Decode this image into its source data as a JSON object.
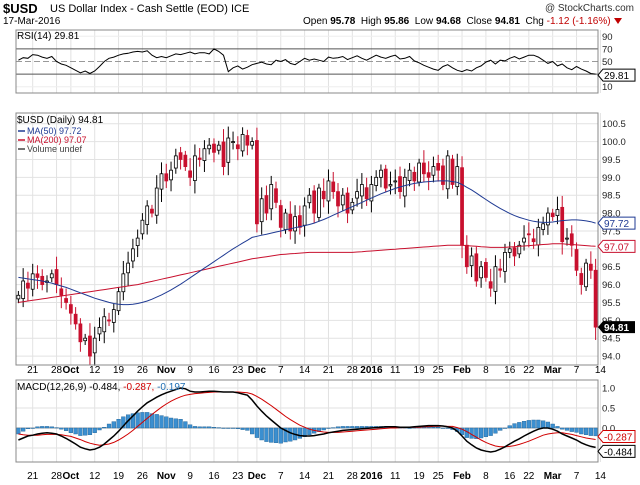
{
  "header": {
    "symbol": "$USD",
    "name": "US Dollar Index - Cash Settle (EOD) ICE",
    "watermark": "@ StockCharts.com",
    "date": "17-Mar-2016",
    "open_label": "Open",
    "open": "95.78",
    "high_label": "High",
    "high": "95.86",
    "low_label": "Low",
    "low": "94.68",
    "close_label": "Close",
    "close": "94.81",
    "chg_label": "Chg",
    "chg": "-1.12 (-1.16%)"
  },
  "x_axis": {
    "labels": [
      {
        "t": "21",
        "i": 3
      },
      {
        "t": "28",
        "i": 8
      },
      {
        "t": "Oct",
        "i": 11,
        "bold": true
      },
      {
        "t": "12",
        "i": 16
      },
      {
        "t": "19",
        "i": 21
      },
      {
        "t": "26",
        "i": 26
      },
      {
        "t": "Nov",
        "i": 31,
        "bold": true
      },
      {
        "t": "9",
        "i": 36
      },
      {
        "t": "16",
        "i": 41
      },
      {
        "t": "23",
        "i": 46
      },
      {
        "t": "Dec",
        "i": 50,
        "bold": true
      },
      {
        "t": "7",
        "i": 55
      },
      {
        "t": "14",
        "i": 60
      },
      {
        "t": "21",
        "i": 65
      },
      {
        "t": "28",
        "i": 70
      },
      {
        "t": "2016",
        "i": 74,
        "bold": true
      },
      {
        "t": "11",
        "i": 79
      },
      {
        "t": "19",
        "i": 84
      },
      {
        "t": "25",
        "i": 88
      },
      {
        "t": "Feb",
        "i": 93,
        "bold": true
      },
      {
        "t": "8",
        "i": 98
      },
      {
        "t": "16",
        "i": 103
      },
      {
        "t": "22",
        "i": 107
      },
      {
        "t": "Mar",
        "i": 112,
        "bold": true
      },
      {
        "t": "7",
        "i": 117
      },
      {
        "t": "14",
        "i": 122
      }
    ]
  },
  "colors": {
    "up": "#000000",
    "down": "#c8102e",
    "ma50": "#1f3a93",
    "ma200": "#c8102e",
    "macd": "#000000",
    "signal": "#d00000",
    "hist": "#3b8fd0",
    "rsi": "#000000"
  },
  "chart_data": [
    {
      "type": "line",
      "title": "RSI(14) 29.81",
      "y_ticks": [
        90,
        70,
        50,
        30,
        10
      ],
      "ylim": [
        0,
        100
      ],
      "overbought": 70,
      "oversold": 30,
      "last_label": "29.81",
      "series": [
        {
          "name": "RSI(14)",
          "values": [
            52,
            56,
            55,
            61,
            60,
            57,
            55,
            58,
            50,
            46,
            44,
            40,
            36,
            32,
            35,
            31,
            35,
            42,
            50,
            55,
            57,
            60,
            62,
            63,
            65,
            66,
            65,
            67,
            60,
            56,
            58,
            56,
            59,
            62,
            61,
            63,
            65,
            62,
            64,
            64,
            62,
            70,
            66,
            60,
            34,
            40,
            43,
            38,
            41,
            45,
            47,
            49,
            46,
            45,
            52,
            50,
            53,
            47,
            45,
            50,
            55,
            52,
            54,
            52,
            50,
            57,
            55,
            56,
            58,
            53,
            56,
            59,
            55,
            52,
            56,
            60,
            57,
            55,
            58,
            60,
            54,
            55,
            58,
            51,
            48,
            44,
            41,
            38,
            36,
            42,
            45,
            40,
            36,
            34,
            37,
            35,
            40,
            43,
            49,
            52,
            46,
            52,
            51,
            55,
            58,
            54,
            57,
            60,
            60,
            57,
            52,
            47,
            50,
            43,
            46,
            40,
            37,
            42,
            38,
            35,
            31,
            30
          ]
        }
      ]
    },
    {
      "type": "candlestick",
      "title": "$USD (Daily) 94.81",
      "legend": [
        {
          "label": "MA(50) 97.72",
          "color": "#1f3a93"
        },
        {
          "label": "MA(200) 97.07",
          "color": "#c8102e"
        },
        {
          "label": "Volume undef",
          "color": "#444444"
        }
      ],
      "y_ticks": [
        94.0,
        94.5,
        95.0,
        95.5,
        96.0,
        96.5,
        97.0,
        97.5,
        98.0,
        98.5,
        99.0,
        99.5,
        100.0,
        100.5
      ],
      "ylim": [
        93.75,
        100.8
      ],
      "last_value_tags": [
        {
          "label": "97.72",
          "value": 97.72,
          "color": "#1f3a93"
        },
        {
          "label": "97.07",
          "value": 97.07,
          "color": "#c8102e"
        },
        {
          "label": "94.81",
          "value": 94.81,
          "color": "#000000"
        }
      ],
      "close": [
        95.7,
        96.1,
        95.9,
        96.3,
        96.2,
        96.0,
        96.1,
        96.3,
        96.0,
        95.7,
        95.5,
        95.2,
        94.9,
        94.4,
        94.5,
        94.0,
        94.5,
        94.8,
        95.1,
        95.0,
        95.3,
        95.8,
        96.3,
        96.6,
        97.0,
        97.3,
        97.8,
        98.2,
        98.0,
        98.7,
        99.1,
        98.9,
        99.2,
        99.6,
        99.5,
        99.3,
        99.0,
        99.6,
        99.5,
        99.8,
        99.9,
        99.7,
        99.9,
        99.3,
        100.1,
        100.0,
        99.8,
        100.2,
        99.9,
        100.0,
        97.7,
        98.4,
        98.0,
        98.8,
        98.3,
        97.6,
        98.0,
        97.5,
        97.9,
        97.6,
        98.2,
        98.5,
        98.0,
        98.7,
        98.4,
        98.9,
        98.6,
        98.2,
        98.5,
        98.0,
        98.3,
        98.6,
        98.8,
        98.4,
        98.8,
        99.0,
        99.2,
        98.7,
        98.8,
        98.9,
        98.6,
        99.0,
        99.2,
        98.9,
        99.4,
        99.1,
        99.0,
        99.3,
        99.2,
        98.8,
        99.6,
        98.8,
        99.3,
        97.1,
        96.5,
        96.8,
        96.1,
        96.5,
        96.2,
        95.9,
        96.5,
        96.4,
        96.9,
        97.0,
        96.8,
        97.1,
        97.3,
        97.4,
        97.2,
        97.6,
        97.7,
        98.0,
        97.9,
        98.1,
        97.2,
        97.3,
        97.1,
        96.4,
        96.0,
        96.6,
        96.4,
        94.81
      ],
      "series": [
        {
          "name": "MA(50)",
          "values": [
            96.2,
            96.18,
            96.16,
            96.14,
            96.12,
            96.1,
            96.07,
            96.04,
            96.0,
            95.96,
            95.92,
            95.87,
            95.82,
            95.77,
            95.72,
            95.67,
            95.62,
            95.58,
            95.54,
            95.5,
            95.47,
            95.45,
            95.44,
            95.44,
            95.45,
            95.47,
            95.5,
            95.54,
            95.59,
            95.65,
            95.71,
            95.78,
            95.85,
            95.93,
            96.01,
            96.1,
            96.19,
            96.28,
            96.37,
            96.46,
            96.55,
            96.64,
            96.73,
            96.82,
            96.91,
            97.0,
            97.08,
            97.16,
            97.24,
            97.32,
            97.35,
            97.38,
            97.41,
            97.44,
            97.47,
            97.5,
            97.53,
            97.56,
            97.59,
            97.62,
            97.65,
            97.68,
            97.72,
            97.77,
            97.82,
            97.88,
            97.94,
            98.0,
            98.06,
            98.12,
            98.18,
            98.24,
            98.3,
            98.36,
            98.42,
            98.48,
            98.54,
            98.59,
            98.64,
            98.69,
            98.73,
            98.77,
            98.8,
            98.83,
            98.85,
            98.87,
            98.88,
            98.89,
            98.9,
            98.9,
            98.9,
            98.88,
            98.86,
            98.8,
            98.72,
            98.65,
            98.56,
            98.47,
            98.38,
            98.29,
            98.21,
            98.13,
            98.06,
            97.99,
            97.93,
            97.88,
            97.84,
            97.8,
            97.77,
            97.75,
            97.74,
            97.74,
            97.75,
            97.77,
            97.79,
            97.8,
            97.81,
            97.81,
            97.8,
            97.78,
            97.76,
            97.72
          ]
        },
        {
          "name": "MA(200)",
          "values": [
            95.5,
            95.52,
            95.54,
            95.56,
            95.58,
            95.6,
            95.62,
            95.64,
            95.66,
            95.68,
            95.7,
            95.72,
            95.74,
            95.76,
            95.78,
            95.8,
            95.82,
            95.84,
            95.86,
            95.88,
            95.9,
            95.92,
            95.94,
            95.96,
            95.98,
            96.0,
            96.03,
            96.06,
            96.09,
            96.12,
            96.15,
            96.18,
            96.21,
            96.24,
            96.27,
            96.3,
            96.33,
            96.36,
            96.39,
            96.42,
            96.45,
            96.48,
            96.51,
            96.54,
            96.57,
            96.6,
            96.63,
            96.66,
            96.69,
            96.72,
            96.74,
            96.76,
            96.78,
            96.8,
            96.82,
            96.84,
            96.85,
            96.86,
            96.87,
            96.88,
            96.89,
            96.9,
            96.9,
            96.9,
            96.9,
            96.9,
            96.9,
            96.9,
            96.9,
            96.9,
            96.9,
            96.91,
            96.92,
            96.93,
            96.94,
            96.95,
            96.96,
            96.97,
            96.98,
            96.99,
            97.0,
            97.01,
            97.02,
            97.03,
            97.04,
            97.05,
            97.06,
            97.07,
            97.08,
            97.09,
            97.1,
            97.1,
            97.1,
            97.1,
            97.09,
            97.08,
            97.07,
            97.06,
            97.05,
            97.04,
            97.04,
            97.04,
            97.04,
            97.05,
            97.06,
            97.07,
            97.08,
            97.09,
            97.1,
            97.11,
            97.12,
            97.13,
            97.14,
            97.14,
            97.14,
            97.13,
            97.12,
            97.11,
            97.1,
            97.09,
            97.08,
            97.07
          ]
        }
      ]
    },
    {
      "type": "line",
      "title": "MACD(12,26,9) -0.484, -0.287, -0.197",
      "title_parts": [
        {
          "t": "MACD(12,26,9) -0.484, ",
          "c": "#000000"
        },
        {
          "t": "-0.287, ",
          "c": "#d00000"
        },
        {
          "t": "-0.197",
          "c": "#1f6fb5"
        }
      ],
      "y_ticks": [
        1.0,
        0.5,
        0.0,
        -0.5
      ],
      "ylim": [
        -0.85,
        1.2
      ],
      "last_value_tags": [
        {
          "label": "-0.287",
          "value": -0.287,
          "color": "#d00000"
        },
        {
          "label": "-0.484",
          "value": -0.484,
          "color": "#000000"
        }
      ],
      "series": [
        {
          "name": "MACD",
          "values": [
            -0.3,
            -0.25,
            -0.2,
            -0.18,
            -0.15,
            -0.13,
            -0.12,
            -0.13,
            -0.15,
            -0.2,
            -0.26,
            -0.33,
            -0.4,
            -0.48,
            -0.52,
            -0.55,
            -0.53,
            -0.48,
            -0.4,
            -0.3,
            -0.2,
            -0.08,
            0.05,
            0.18,
            0.3,
            0.42,
            0.53,
            0.63,
            0.7,
            0.77,
            0.83,
            0.88,
            0.92,
            0.96,
            1.0,
            0.98,
            0.92,
            0.9,
            0.9,
            0.91,
            0.92,
            0.92,
            0.91,
            0.9,
            0.9,
            0.9,
            0.88,
            0.85,
            0.82,
            0.7,
            0.55,
            0.42,
            0.3,
            0.2,
            0.1,
            0.0,
            -0.06,
            -0.12,
            -0.16,
            -0.19,
            -0.2,
            -0.2,
            -0.19,
            -0.17,
            -0.15,
            -0.12,
            -0.1,
            -0.08,
            -0.06,
            -0.05,
            -0.04,
            -0.03,
            -0.02,
            -0.01,
            0.0,
            0.01,
            0.02,
            0.03,
            0.03,
            0.03,
            0.02,
            0.02,
            0.02,
            0.03,
            0.04,
            0.05,
            0.06,
            0.06,
            0.06,
            0.05,
            0.03,
            0.0,
            -0.08,
            -0.2,
            -0.33,
            -0.42,
            -0.5,
            -0.55,
            -0.58,
            -0.6,
            -0.58,
            -0.53,
            -0.47,
            -0.4,
            -0.33,
            -0.27,
            -0.2,
            -0.14,
            -0.08,
            -0.03,
            0.0,
            0.0,
            -0.03,
            -0.08,
            -0.15,
            -0.2,
            -0.25,
            -0.3,
            -0.37,
            -0.42,
            -0.46,
            -0.484
          ]
        },
        {
          "name": "Signal",
          "values": [
            -0.15,
            -0.17,
            -0.18,
            -0.18,
            -0.18,
            -0.17,
            -0.16,
            -0.16,
            -0.16,
            -0.17,
            -0.19,
            -0.21,
            -0.25,
            -0.29,
            -0.34,
            -0.38,
            -0.41,
            -0.43,
            -0.42,
            -0.4,
            -0.36,
            -0.3,
            -0.23,
            -0.15,
            -0.06,
            0.04,
            0.14,
            0.24,
            0.34,
            0.43,
            0.52,
            0.6,
            0.67,
            0.73,
            0.78,
            0.82,
            0.84,
            0.86,
            0.87,
            0.88,
            0.89,
            0.9,
            0.9,
            0.9,
            0.9,
            0.9,
            0.9,
            0.89,
            0.88,
            0.85,
            0.79,
            0.72,
            0.64,
            0.56,
            0.47,
            0.38,
            0.29,
            0.21,
            0.14,
            0.07,
            0.02,
            -0.03,
            -0.06,
            -0.08,
            -0.1,
            -0.11,
            -0.11,
            -0.11,
            -0.1,
            -0.09,
            -0.08,
            -0.07,
            -0.06,
            -0.05,
            -0.04,
            -0.03,
            -0.02,
            -0.01,
            0.0,
            0.0,
            0.01,
            0.01,
            0.02,
            0.02,
            0.02,
            0.03,
            0.03,
            0.04,
            0.04,
            0.05,
            0.04,
            0.04,
            0.01,
            -0.03,
            -0.09,
            -0.16,
            -0.23,
            -0.3,
            -0.36,
            -0.41,
            -0.45,
            -0.47,
            -0.47,
            -0.46,
            -0.44,
            -0.41,
            -0.37,
            -0.33,
            -0.28,
            -0.23,
            -0.18,
            -0.15,
            -0.13,
            -0.12,
            -0.12,
            -0.14,
            -0.16,
            -0.19,
            -0.22,
            -0.25,
            -0.27,
            -0.287
          ]
        },
        {
          "name": "Histogram",
          "values": [
            -0.15,
            -0.08,
            -0.02,
            0.0,
            0.03,
            0.04,
            0.04,
            0.03,
            0.01,
            -0.03,
            -0.07,
            -0.12,
            -0.15,
            -0.19,
            -0.18,
            -0.17,
            -0.12,
            -0.05,
            0.02,
            0.1,
            0.16,
            0.22,
            0.28,
            0.33,
            0.36,
            0.38,
            0.39,
            0.39,
            0.36,
            0.34,
            0.31,
            0.28,
            0.25,
            0.23,
            0.22,
            0.16,
            0.08,
            0.04,
            0.03,
            0.03,
            0.03,
            0.02,
            0.01,
            0.0,
            0.0,
            0.0,
            -0.02,
            -0.04,
            -0.06,
            -0.15,
            -0.24,
            -0.3,
            -0.34,
            -0.36,
            -0.37,
            -0.38,
            -0.35,
            -0.33,
            -0.3,
            -0.26,
            -0.22,
            -0.17,
            -0.13,
            -0.09,
            -0.05,
            -0.01,
            0.01,
            0.03,
            0.04,
            0.04,
            0.04,
            0.04,
            0.04,
            0.04,
            0.04,
            0.04,
            0.04,
            0.04,
            0.03,
            0.03,
            0.01,
            0.01,
            0.0,
            0.01,
            0.02,
            0.02,
            0.03,
            0.02,
            0.02,
            0.0,
            -0.01,
            -0.04,
            -0.09,
            -0.17,
            -0.24,
            -0.26,
            -0.27,
            -0.25,
            -0.22,
            -0.19,
            -0.13,
            -0.06,
            0.0,
            0.06,
            0.11,
            0.14,
            0.17,
            0.19,
            0.2,
            0.2,
            0.18,
            0.15,
            0.1,
            0.04,
            -0.03,
            -0.06,
            -0.09,
            -0.11,
            -0.15,
            -0.17,
            -0.19,
            -0.197
          ]
        }
      ]
    }
  ]
}
